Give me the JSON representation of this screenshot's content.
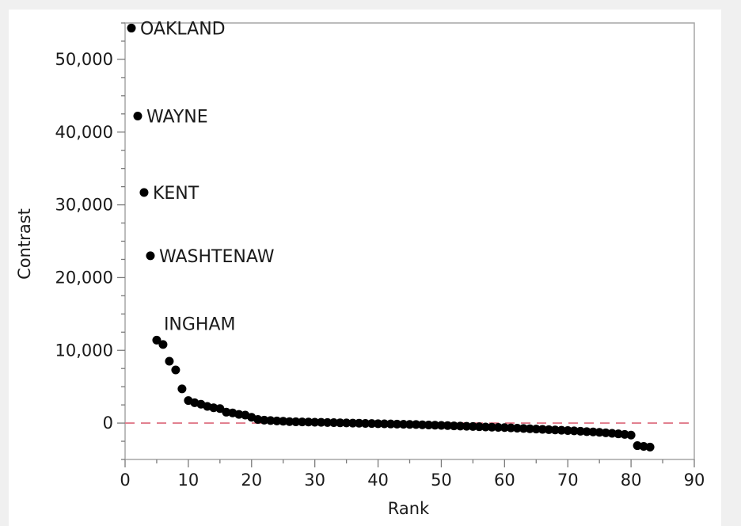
{
  "chart_data": {
    "type": "scatter",
    "title": "",
    "xlabel": "Rank",
    "ylabel": "Contrast",
    "xlim": [
      0,
      90
    ],
    "ylim": [
      -5000,
      55000
    ],
    "xticks": [
      0,
      10,
      20,
      30,
      40,
      50,
      60,
      70,
      80,
      90
    ],
    "xtick_labels": [
      "0",
      "10",
      "20",
      "30",
      "40",
      "50",
      "60",
      "70",
      "80",
      "90"
    ],
    "yticks": [
      0,
      10000,
      20000,
      30000,
      40000,
      50000
    ],
    "ytick_labels": [
      "0",
      "10,000",
      "20,000",
      "30,000",
      "40,000",
      "50,000"
    ],
    "reference_line": {
      "y": 0,
      "style": "dashed",
      "color": "#e07a8a"
    },
    "marker_color": "#000000",
    "grid": false,
    "legend": "none",
    "labeled_points": [
      {
        "rank": 1,
        "label": "OAKLAND"
      },
      {
        "rank": 2,
        "label": "WAYNE"
      },
      {
        "rank": 3,
        "label": "KENT"
      },
      {
        "rank": 4,
        "label": "WASHTENAW"
      },
      {
        "rank": 5,
        "label": "INGHAM"
      }
    ],
    "x": [
      1,
      2,
      3,
      4,
      5,
      6,
      7,
      8,
      9,
      10,
      11,
      12,
      13,
      14,
      15,
      16,
      17,
      18,
      19,
      20,
      21,
      22,
      23,
      24,
      25,
      26,
      27,
      28,
      29,
      30,
      31,
      32,
      33,
      34,
      35,
      36,
      37,
      38,
      39,
      40,
      41,
      42,
      43,
      44,
      45,
      46,
      47,
      48,
      49,
      50,
      51,
      52,
      53,
      54,
      55,
      56,
      57,
      58,
      59,
      60,
      61,
      62,
      63,
      64,
      65,
      66,
      67,
      68,
      69,
      70,
      71,
      72,
      73,
      74,
      75,
      76,
      77,
      78,
      79,
      80,
      81,
      82,
      83
    ],
    "y": [
      54300,
      42200,
      31700,
      23000,
      11400,
      10800,
      8500,
      7300,
      4700,
      3100,
      2800,
      2600,
      2300,
      2100,
      2000,
      1500,
      1400,
      1200,
      1100,
      800,
      500,
      400,
      350,
      300,
      250,
      200,
      180,
      160,
      140,
      120,
      100,
      80,
      60,
      40,
      20,
      0,
      -20,
      -40,
      -60,
      -80,
      -100,
      -120,
      -140,
      -160,
      -180,
      -200,
      -230,
      -260,
      -290,
      -320,
      -350,
      -380,
      -410,
      -440,
      -470,
      -500,
      -530,
      -560,
      -590,
      -620,
      -660,
      -700,
      -740,
      -780,
      -820,
      -860,
      -900,
      -940,
      -980,
      -1020,
      -1070,
      -1120,
      -1170,
      -1220,
      -1270,
      -1340,
      -1410,
      -1480,
      -1560,
      -1650,
      -3100,
      -3200,
      -3300
    ]
  }
}
